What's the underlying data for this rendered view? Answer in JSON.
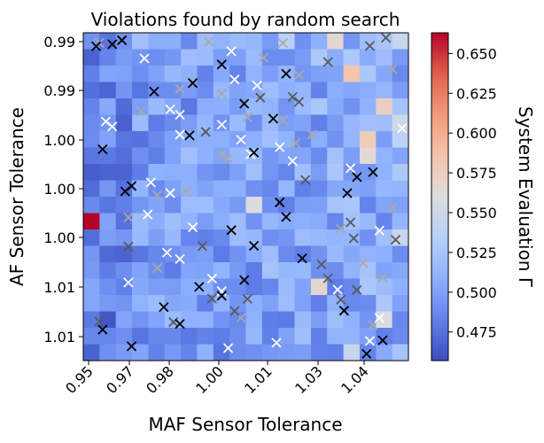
{
  "chart_data": {
    "type": "heatmap",
    "title": "Violations found by random search",
    "xlabel": "MAF Sensor Tolerance",
    "ylabel": "AF Sensor Tolerance",
    "colorbar_label": "System Evaluation Γ",
    "colormap": "coolwarm",
    "value_range": [
      0.457,
      0.663
    ],
    "x_ticks": [
      "0.95",
      "0.97",
      "0.98",
      "1.00",
      "1.01",
      "1.03",
      "1.04"
    ],
    "y_ticks": [
      "0.99",
      "0.99",
      "1.00",
      "1.00",
      "1.00",
      "1.01",
      "1.01"
    ],
    "colorbar_ticks": [
      0.475,
      0.5,
      0.525,
      0.55,
      0.575,
      0.6,
      0.625,
      0.65
    ],
    "grid_size": [
      20,
      20
    ],
    "highlight_cells": [
      {
        "row": 2,
        "col": 16,
        "value": 0.585
      },
      {
        "row": 11,
        "col": 0,
        "value": 0.663
      },
      {
        "row": 6,
        "col": 19,
        "value": 0.538
      },
      {
        "row": 6,
        "col": 17,
        "value": 0.578
      },
      {
        "row": 7,
        "col": 17,
        "value": 0.565
      },
      {
        "row": 0,
        "col": 15,
        "value": 0.566
      },
      {
        "row": 0,
        "col": 19,
        "value": 0.545
      },
      {
        "row": 4,
        "col": 18,
        "value": 0.575
      },
      {
        "row": 5,
        "col": 19,
        "value": 0.548
      },
      {
        "row": 10,
        "col": 10,
        "value": 0.558
      },
      {
        "row": 15,
        "col": 14,
        "value": 0.568
      },
      {
        "row": 17,
        "col": 18,
        "value": 0.558
      },
      {
        "row": 19,
        "col": 16,
        "value": 0.545
      },
      {
        "row": 12,
        "col": 19,
        "value": 0.545
      },
      {
        "row": 0,
        "col": 12,
        "value": 0.535
      },
      {
        "row": 1,
        "col": 14,
        "value": 0.528
      }
    ],
    "markers_black": [
      [
        0.953,
        0.9918
      ],
      [
        0.958,
        0.9912
      ],
      [
        0.961,
        0.9901
      ],
      [
        0.992,
        0.9969
      ],
      [
        1.012,
        0.9995
      ],
      [
        0.971,
        1.0045
      ],
      [
        0.983,
        1.0021
      ],
      [
        0.999,
        1.0079
      ],
      [
        1.008,
        1.0121
      ],
      [
        0.982,
        1.0168
      ],
      [
        1.002,
        1.0216
      ],
      [
        0.955,
        1.0207
      ],
      [
        1.039,
        1.0271
      ],
      [
        1.034,
        1.0285
      ],
      [
        0.964,
        1.031
      ],
      [
        0.962,
        1.0325
      ],
      [
        1.012,
        1.0397
      ],
      [
        1.031,
        1.033
      ],
      [
        1.01,
        1.0356
      ],
      [
        0.995,
        1.0434
      ],
      [
        1.002,
        1.0478
      ],
      [
        1.017,
        1.0513
      ],
      [
        0.999,
        1.0574
      ],
      [
        0.985,
        1.0593
      ],
      [
        0.992,
        1.0618
      ],
      [
        0.974,
        1.065
      ],
      [
        0.979,
        1.0697
      ],
      [
        1.03,
        1.066
      ],
      [
        1.042,
        1.0743
      ],
      [
        1.037,
        1.0781
      ],
      [
        0.955,
        1.0713
      ],
      [
        0.964,
        1.076
      ]
    ],
    "markers_dark_gray": [
      [
        1.025,
        0.9962
      ],
      [
        1.043,
        0.9894
      ],
      [
        1.038,
        0.9917
      ],
      [
        1.014,
        1.006
      ],
      [
        1.004,
        1.0062
      ],
      [
        1.016,
        1.0074
      ],
      [
        0.987,
        1.0158
      ],
      [
        1.018,
        1.0293
      ],
      [
        1.032,
        1.0412
      ],
      [
        1.033,
        1.0457
      ],
      [
        0.986,
        1.0479
      ],
      [
        1.046,
        1.0461
      ],
      [
        1.023,
        1.053
      ],
      [
        1.025,
        1.0569
      ],
      [
        0.963,
        1.048
      ],
      [
        1.034,
        1.0602
      ],
      [
        1.0,
        1.0627
      ],
      [
        0.989,
        1.0626
      ],
      [
        0.996,
        1.0661
      ],
      [
        1.029,
        1.0629
      ],
      [
        0.954,
        1.069
      ],
      [
        0.977,
        1.0692
      ]
    ],
    "markers_light_gray": [
      [
        0.954,
        0.9908
      ],
      [
        0.988,
        0.9905
      ],
      [
        1.005,
        0.995
      ],
      [
        1.016,
        0.9999
      ],
      [
        0.983,
        1.0018
      ],
      [
        0.979,
        1.0038
      ],
      [
        0.992,
        1.0051
      ],
      [
        1.0,
        1.0117
      ],
      [
        1.011,
        1.0125
      ],
      [
        1.02,
        1.0166
      ],
      [
        1.015,
        1.019
      ],
      [
        0.992,
        1.0221
      ],
      [
        0.994,
        1.0233
      ],
      [
        0.981,
        1.0325
      ],
      [
        0.972,
        1.0336
      ],
      [
        0.963,
        1.0398
      ],
      [
        1.029,
        1.043
      ],
      [
        1.045,
        1.0372
      ],
      [
        1.036,
        1.0526
      ],
      [
        1.042,
        1.0567
      ],
      [
        0.998,
        1.068
      ],
      [
        1.039,
        1.07
      ],
      [
        0.972,
        1.054
      ],
      [
        1.045,
        0.9983
      ],
      [
        1.011,
        0.9909
      ],
      [
        0.967,
        1.01
      ]
    ],
    "markers_white": [
      [
        0.968,
        0.9952
      ],
      [
        0.995,
        0.9932
      ],
      [
        0.996,
        1.0011
      ],
      [
        1.003,
        1.0028
      ],
      [
        0.976,
        1.0095
      ],
      [
        0.979,
        1.011
      ],
      [
        0.992,
        1.0138
      ],
      [
        0.956,
        1.0129
      ],
      [
        0.958,
        1.0143
      ],
      [
        0.979,
        1.0166
      ],
      [
        1.01,
        1.0201
      ],
      [
        1.014,
        1.024
      ],
      [
        0.998,
        1.018
      ],
      [
        1.001,
        1.0221
      ],
      [
        0.97,
        1.03
      ],
      [
        0.976,
        1.033
      ],
      [
        0.975,
        1.0497
      ],
      [
        0.979,
        1.0515
      ],
      [
        0.963,
        1.0581
      ],
      [
        0.992,
        1.0605
      ],
      [
        1.028,
        1.0601
      ],
      [
        1.041,
        1.068
      ],
      [
        1.038,
        1.0745
      ],
      [
        0.994,
        1.0765
      ],
      [
        1.009,
        1.075
      ],
      [
        0.969,
        1.039
      ],
      [
        1.032,
        1.026
      ],
      [
        1.048,
        1.0148
      ],
      [
        0.983,
        1.0426
      ],
      [
        0.989,
        1.057
      ],
      [
        1.041,
        1.0435
      ]
    ]
  }
}
